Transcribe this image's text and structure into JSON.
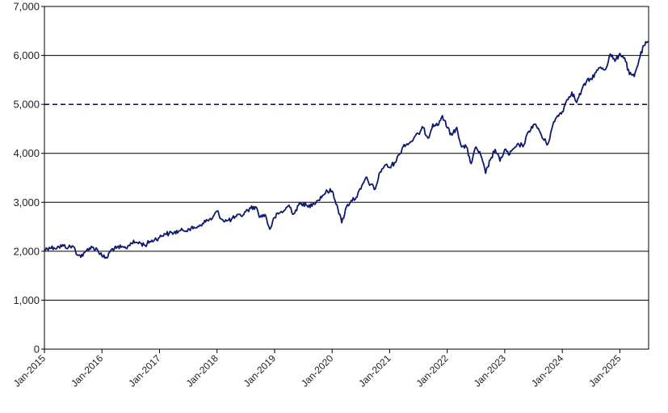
{
  "chart_data": {
    "type": "line",
    "title": "",
    "xlabel": "",
    "ylabel": "",
    "ylim": [
      0,
      7000
    ],
    "xlim": [
      "2015-01",
      "2025-07"
    ],
    "grid": "horizontal",
    "y_ticks": [
      "0",
      "1,000",
      "2,000",
      "3,000",
      "4,000",
      "5,000",
      "6,000",
      "7,000"
    ],
    "x_ticks": [
      "Jan-2015",
      "Jan-2016",
      "Jan-2017",
      "Jan-2018",
      "Jan-2019",
      "Jan-2020",
      "Jan-2021",
      "Jan-2022",
      "Jan-2023",
      "Jan-2024",
      "Jan-2025"
    ],
    "reference_line": {
      "y": 5000,
      "style": "dashed"
    },
    "colors": {
      "series": "#0d1a6e",
      "grid": "#000000",
      "reference": "#0d1a6e"
    },
    "series": [
      {
        "points": [
          [
            "2015-01",
            2030
          ],
          [
            "2015-02",
            2080
          ],
          [
            "2015-03",
            2070
          ],
          [
            "2015-04",
            2090
          ],
          [
            "2015-05",
            2110
          ],
          [
            "2015-06",
            2080
          ],
          [
            "2015-07",
            2100
          ],
          [
            "2015-08",
            1920
          ],
          [
            "2015-09",
            1900
          ],
          [
            "2015-10",
            2050
          ],
          [
            "2015-11",
            2080
          ],
          [
            "2015-12",
            2040
          ],
          [
            "2016-01",
            1900
          ],
          [
            "2016-02",
            1860
          ],
          [
            "2016-03",
            2040
          ],
          [
            "2016-04",
            2060
          ],
          [
            "2016-05",
            2080
          ],
          [
            "2016-06",
            2060
          ],
          [
            "2016-07",
            2170
          ],
          [
            "2016-08",
            2180
          ],
          [
            "2016-09",
            2170
          ],
          [
            "2016-10",
            2120
          ],
          [
            "2016-11",
            2200
          ],
          [
            "2016-12",
            2240
          ],
          [
            "2017-01",
            2280
          ],
          [
            "2017-02",
            2360
          ],
          [
            "2017-03",
            2360
          ],
          [
            "2017-04",
            2380
          ],
          [
            "2017-05",
            2410
          ],
          [
            "2017-06",
            2420
          ],
          [
            "2017-07",
            2460
          ],
          [
            "2017-08",
            2460
          ],
          [
            "2017-09",
            2510
          ],
          [
            "2017-10",
            2570
          ],
          [
            "2017-11",
            2630
          ],
          [
            "2017-12",
            2670
          ],
          [
            "2018-01",
            2820
          ],
          [
            "2018-02",
            2650
          ],
          [
            "2018-03",
            2620
          ],
          [
            "2018-04",
            2650
          ],
          [
            "2018-05",
            2710
          ],
          [
            "2018-06",
            2720
          ],
          [
            "2018-07",
            2810
          ],
          [
            "2018-08",
            2880
          ],
          [
            "2018-09",
            2910
          ],
          [
            "2018-10",
            2700
          ],
          [
            "2018-11",
            2750
          ],
          [
            "2018-12",
            2450
          ],
          [
            "2019-01",
            2690
          ],
          [
            "2019-02",
            2780
          ],
          [
            "2019-03",
            2830
          ],
          [
            "2019-04",
            2940
          ],
          [
            "2019-05",
            2760
          ],
          [
            "2019-06",
            2940
          ],
          [
            "2019-07",
            2980
          ],
          [
            "2019-08",
            2900
          ],
          [
            "2019-09",
            2980
          ],
          [
            "2019-10",
            3040
          ],
          [
            "2019-11",
            3140
          ],
          [
            "2019-12",
            3230
          ],
          [
            "2020-01",
            3230
          ],
          [
            "2020-02",
            2950
          ],
          [
            "2020-03",
            2580
          ],
          [
            "2020-04",
            2910
          ],
          [
            "2020-05",
            3040
          ],
          [
            "2020-06",
            3100
          ],
          [
            "2020-07",
            3270
          ],
          [
            "2020-08",
            3500
          ],
          [
            "2020-09",
            3360
          ],
          [
            "2020-10",
            3270
          ],
          [
            "2020-11",
            3620
          ],
          [
            "2020-12",
            3760
          ],
          [
            "2021-01",
            3710
          ],
          [
            "2021-02",
            3810
          ],
          [
            "2021-03",
            3970
          ],
          [
            "2021-04",
            4180
          ],
          [
            "2021-05",
            4200
          ],
          [
            "2021-06",
            4300
          ],
          [
            "2021-07",
            4400
          ],
          [
            "2021-08",
            4520
          ],
          [
            "2021-09",
            4310
          ],
          [
            "2021-10",
            4600
          ],
          [
            "2021-11",
            4570
          ],
          [
            "2021-12",
            4770
          ],
          [
            "2022-01",
            4520
          ],
          [
            "2022-02",
            4370
          ],
          [
            "2022-03",
            4530
          ],
          [
            "2022-04",
            4130
          ],
          [
            "2022-05",
            4130
          ],
          [
            "2022-06",
            3790
          ],
          [
            "2022-07",
            4130
          ],
          [
            "2022-08",
            3960
          ],
          [
            "2022-09",
            3590
          ],
          [
            "2022-10",
            3870
          ],
          [
            "2022-11",
            4080
          ],
          [
            "2022-12",
            3840
          ],
          [
            "2023-01",
            4080
          ],
          [
            "2023-02",
            3970
          ],
          [
            "2023-03",
            4110
          ],
          [
            "2023-04",
            4170
          ],
          [
            "2023-05",
            4180
          ],
          [
            "2023-06",
            4450
          ],
          [
            "2023-07",
            4590
          ],
          [
            "2023-08",
            4510
          ],
          [
            "2023-09",
            4290
          ],
          [
            "2023-10",
            4190
          ],
          [
            "2023-11",
            4570
          ],
          [
            "2023-12",
            4770
          ],
          [
            "2024-01",
            4850
          ],
          [
            "2024-02",
            5100
          ],
          [
            "2024-03",
            5250
          ],
          [
            "2024-04",
            5040
          ],
          [
            "2024-05",
            5280
          ],
          [
            "2024-06",
            5460
          ],
          [
            "2024-07",
            5520
          ],
          [
            "2024-08",
            5650
          ],
          [
            "2024-09",
            5760
          ],
          [
            "2024-10",
            5710
          ],
          [
            "2024-11",
            6030
          ],
          [
            "2024-12",
            5880
          ],
          [
            "2025-01",
            6040
          ],
          [
            "2025-02",
            5950
          ],
          [
            "2025-03",
            5610
          ],
          [
            "2025-04",
            5570
          ],
          [
            "2025-05",
            5910
          ],
          [
            "2025-06",
            6200
          ],
          [
            "2025-07",
            6280
          ]
        ]
      }
    ]
  }
}
